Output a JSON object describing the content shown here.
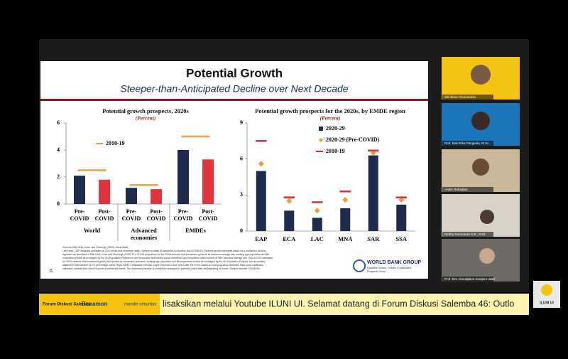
{
  "slide": {
    "title": "Potential Growth",
    "subtitle": "Steeper-than-Anticipated Decline over Next Decade",
    "notes": [
      "Sources: Kilic Celik, Kose, and Ohnsorge (2020); World Bank.",
      "Left Panel. GDP-weighted averages (at 2010 prices and exchange rates). Sample includes 30 advanced economies and 52 EMDEs. Potential growth estimates based on a production function",
      "approach as described in Kilic Celik, Kose and Ohnsorge (2020). Pre-COVID projections for the 2020s assume that investment grows at its historical average rate, working age population and life",
      "expectancy evolve as envisaged by the UN Population Projections, and secondary and tertiary school enrollment and completion rates improve at their historical average rate. Post-COVID estimates",
      "for 2020s assume that investment grows as expected by consensus forecasts, working age population and life expectancy evolve as envisaged by the UN Population Projects, and secondary",
      "attainment rates decline by 2.5 percentage points. Right Panel. Cumulative potential output response in four years after the event, based on local projection estimates. Bars show coefficient",
      "estimates, vertical lines show 90 percent confidence bands. The dependent variable is cumulative slowdown in potential output after the beginning of events. Sample includes 75 EMDEs."
    ],
    "page_number": "6",
    "logo": {
      "name": "WORLD BANK GROUP",
      "line1": "Equitable Growth, Finance & Institutions",
      "line2": "Prospects Group"
    }
  },
  "chart_data": [
    {
      "type": "bar",
      "title": "Potential growth prospects, 2020s",
      "subtitle": "(Percent)",
      "categories": [
        "World",
        "Advanced economies",
        "EMDEs"
      ],
      "bar_labels": true,
      "series": [
        {
          "name": "Pre-COVID",
          "color": "#1f2b4d",
          "mark": "bar",
          "values": [
            2.1,
            1.2,
            4.0
          ]
        },
        {
          "name": "Post-COVID",
          "color": "#e2343c",
          "mark": "bar",
          "values": [
            1.8,
            1.1,
            3.3
          ]
        },
        {
          "name": "2010-19",
          "color": "#f0a04b",
          "mark": "dash",
          "values": [
            2.5,
            1.4,
            5.0
          ]
        }
      ],
      "ylim": [
        0,
        6
      ],
      "yticks": [
        0,
        2,
        4,
        6
      ]
    },
    {
      "type": "bar",
      "title": "Potential growth prospects for the 2020s, by EMDE region",
      "subtitle": "(Percent)",
      "categories": [
        "EAP",
        "ECA",
        "LAC",
        "MNA",
        "SAR",
        "SSA"
      ],
      "bar_labels": false,
      "series": [
        {
          "name": "2020-29",
          "color": "#1f2b4d",
          "mark": "bar",
          "values": [
            5.0,
            1.7,
            1.1,
            1.9,
            6.3,
            2.2
          ]
        },
        {
          "name": "2020-29 (Pre-COVID)",
          "color": "#f29a3c",
          "mark": "diamond",
          "values": [
            5.6,
            2.5,
            1.7,
            2.6,
            6.5,
            2.6
          ]
        },
        {
          "name": "2010-19",
          "color": "#e2283c",
          "mark": "dash",
          "values": [
            7.5,
            2.8,
            2.4,
            3.3,
            6.7,
            2.8
          ]
        }
      ],
      "ylim": [
        0,
        9
      ],
      "yticks": [
        0,
        3,
        6,
        9
      ]
    }
  ],
  "participants": [
    "Siti Ilham Choirunnisa",
    "Prof. Mari Elka Pangestu, M.Sc...",
    "Andre Rahadian",
    "Dedhy Darmawan S.E., M.M.",
    "Prof. Drs. Dorodjatun Kuntjoro-Jakti"
  ],
  "ticker": {
    "sponsors": [
      "Forum Diskusi Salemba",
      "Danamon",
      "mandiri sekuritas"
    ],
    "text": "lisaksikan melalui Youtube ILUNI UI. Selamat datang di Forum Diskusi Salemba 46: Outlo",
    "logo": "ILUNI UI"
  }
}
